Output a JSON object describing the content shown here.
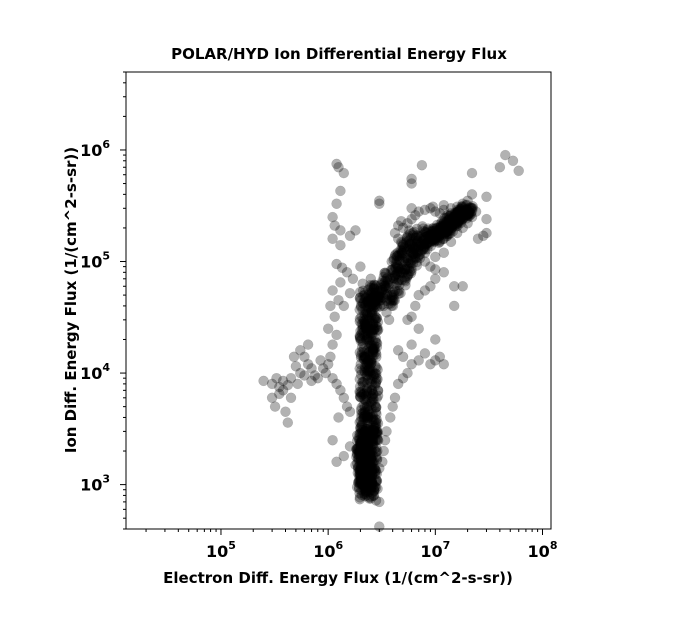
{
  "chart_data": {
    "type": "scatter",
    "title": "POLAR/HYD  Ion Differential Energy Flux",
    "xlabel": "Electron Diff. Energy Flux (1/(cm^2-s-sr))",
    "ylabel": "Ion Diff. Energy Flux (1/(cm^2-s-sr))",
    "xscale": "log",
    "yscale": "log",
    "xlim": [
      13000,
      120000000
    ],
    "ylim": [
      400,
      5000000
    ],
    "grid": false,
    "marker_color": "#000000",
    "marker_alpha": 0.3,
    "x_ticks": [
      {
        "base": "10",
        "exp": "5",
        "value": 100000
      },
      {
        "base": "10",
        "exp": "6",
        "value": 1000000
      },
      {
        "base": "10",
        "exp": "7",
        "value": 10000000
      },
      {
        "base": "10",
        "exp": "8",
        "value": 100000000
      }
    ],
    "y_ticks": [
      {
        "base": "10",
        "exp": "3",
        "value": 1000
      },
      {
        "base": "10",
        "exp": "4",
        "value": 10000
      },
      {
        "base": "10",
        "exp": "5",
        "value": 100000
      },
      {
        "base": "10",
        "exp": "6",
        "value": 1000000
      }
    ],
    "points": [
      [
        1200000,
        750000
      ],
      [
        1250000,
        700000
      ],
      [
        1400000,
        620000
      ],
      [
        1300000,
        430000
      ],
      [
        1200000,
        330000
      ],
      [
        1100000,
        250000
      ],
      [
        1150000,
        210000
      ],
      [
        1300000,
        190000
      ],
      [
        1100000,
        160000
      ],
      [
        1600000,
        170000
      ],
      [
        1300000,
        140000
      ],
      [
        1200000,
        95000
      ],
      [
        1350000,
        88000
      ],
      [
        1500000,
        80000
      ],
      [
        1700000,
        70000
      ],
      [
        1300000,
        65000
      ],
      [
        1100000,
        55000
      ],
      [
        1250000,
        45000
      ],
      [
        1050000,
        40000
      ],
      [
        1150000,
        32000
      ],
      [
        1000000,
        25000
      ],
      [
        1200000,
        22000
      ],
      [
        1100000,
        18000
      ],
      [
        1050000,
        14000
      ],
      [
        1000000,
        12000
      ],
      [
        900000,
        11000
      ],
      [
        800000,
        9000
      ],
      [
        700000,
        8500
      ],
      [
        600000,
        9500
      ],
      [
        650000,
        12000
      ],
      [
        550000,
        10000
      ],
      [
        500000,
        11500
      ],
      [
        480000,
        14000
      ],
      [
        550000,
        16000
      ],
      [
        600000,
        14000
      ],
      [
        650000,
        18000
      ],
      [
        700000,
        11000
      ],
      [
        450000,
        9000
      ],
      [
        420000,
        7800
      ],
      [
        380000,
        7000
      ],
      [
        350000,
        6500
      ],
      [
        300000,
        6000
      ],
      [
        250000,
        8500
      ],
      [
        320000,
        5000
      ],
      [
        400000,
        4500
      ],
      [
        420000,
        3600
      ],
      [
        350000,
        7500
      ],
      [
        300000,
        8000
      ],
      [
        450000,
        6000
      ],
      [
        520000,
        8000
      ],
      [
        380000,
        8500
      ],
      [
        330000,
        9000
      ],
      [
        750000,
        9500
      ],
      [
        850000,
        13000
      ],
      [
        950000,
        10000
      ],
      [
        1100000,
        9000
      ],
      [
        1200000,
        8000
      ],
      [
        1300000,
        7000
      ],
      [
        1400000,
        6000
      ],
      [
        1500000,
        5000
      ],
      [
        1600000,
        4500
      ],
      [
        1250000,
        4000
      ],
      [
        1100000,
        2500
      ],
      [
        1200000,
        1600
      ],
      [
        1400000,
        1800
      ],
      [
        1600000,
        2200
      ],
      [
        1800000,
        1500
      ],
      [
        2000000,
        1200
      ],
      [
        2100000,
        1000
      ],
      [
        2200000,
        900
      ],
      [
        2300000,
        800
      ],
      [
        2500000,
        750
      ],
      [
        2800000,
        720
      ],
      [
        2600000,
        850
      ],
      [
        3000000,
        700
      ],
      [
        3000000,
        420
      ],
      [
        3400000,
        2500
      ],
      [
        3500000,
        3000
      ],
      [
        3800000,
        4000
      ],
      [
        4000000,
        5000
      ],
      [
        4200000,
        6000
      ],
      [
        4500000,
        8000
      ],
      [
        5000000,
        9000
      ],
      [
        5500000,
        10000
      ],
      [
        6000000,
        12000
      ],
      [
        5000000,
        14000
      ],
      [
        4500000,
        16000
      ],
      [
        6000000,
        18000
      ],
      [
        7000000,
        13000
      ],
      [
        8000000,
        15000
      ],
      [
        9000000,
        12000
      ],
      [
        10000000,
        13000
      ],
      [
        11000000,
        14000
      ],
      [
        12000000,
        12000
      ],
      [
        10000000,
        20000
      ],
      [
        7000000,
        25000
      ],
      [
        6000000,
        32000
      ],
      [
        5500000,
        30000
      ],
      [
        6500000,
        40000
      ],
      [
        7000000,
        50000
      ],
      [
        8000000,
        55000
      ],
      [
        9000000,
        60000
      ],
      [
        10000000,
        70000
      ],
      [
        12000000,
        80000
      ],
      [
        15000000,
        60000
      ],
      [
        10000000,
        85000
      ],
      [
        9000000,
        90000
      ],
      [
        8000000,
        100000
      ],
      [
        10000000,
        110000
      ],
      [
        12000000,
        120000
      ],
      [
        14000000,
        150000
      ],
      [
        16000000,
        180000
      ],
      [
        18000000,
        200000
      ],
      [
        20000000,
        220000
      ],
      [
        22000000,
        250000
      ],
      [
        24000000,
        280000
      ],
      [
        22000000,
        300000
      ],
      [
        20000000,
        260000
      ],
      [
        18000000,
        240000
      ],
      [
        16000000,
        230000
      ],
      [
        15000000,
        210000
      ],
      [
        14000000,
        190000
      ],
      [
        13000000,
        170000
      ],
      [
        12000000,
        160000
      ],
      [
        11000000,
        150000
      ],
      [
        5000000,
        200000
      ],
      [
        5500000,
        220000
      ],
      [
        6000000,
        240000
      ],
      [
        6500000,
        260000
      ],
      [
        7000000,
        280000
      ],
      [
        8000000,
        290000
      ],
      [
        9000000,
        300000
      ],
      [
        10000000,
        280000
      ],
      [
        11000000,
        270000
      ],
      [
        12000000,
        290000
      ],
      [
        13000000,
        260000
      ],
      [
        4800000,
        230000
      ],
      [
        4500000,
        210000
      ],
      [
        4200000,
        180000
      ],
      [
        4500000,
        160000
      ],
      [
        4800000,
        150000
      ],
      [
        5000000,
        140000
      ],
      [
        5500000,
        130000
      ],
      [
        6000000,
        120000
      ],
      [
        6500000,
        110000
      ],
      [
        5000000,
        100000
      ],
      [
        4500000,
        90000
      ],
      [
        4000000,
        80000
      ],
      [
        3800000,
        70000
      ],
      [
        3600000,
        65000
      ],
      [
        3400000,
        60000
      ],
      [
        3200000,
        55000
      ],
      [
        3000000,
        50000
      ],
      [
        3100000,
        45000
      ],
      [
        3300000,
        40000
      ],
      [
        3500000,
        35000
      ],
      [
        3700000,
        30000
      ],
      [
        6000000,
        550000
      ],
      [
        6000000,
        500000
      ],
      [
        7500000,
        730000
      ],
      [
        9500000,
        310000
      ],
      [
        12000000,
        320000
      ],
      [
        14000000,
        300000
      ],
      [
        16000000,
        310000
      ],
      [
        18000000,
        330000
      ],
      [
        20000000,
        350000
      ],
      [
        22000000,
        400000
      ],
      [
        30000000,
        380000
      ],
      [
        22000000,
        620000
      ],
      [
        45000000,
        900000
      ],
      [
        40000000,
        700000
      ],
      [
        53000000,
        800000
      ],
      [
        60000000,
        650000
      ],
      [
        30000000,
        240000
      ],
      [
        30000000,
        180000
      ],
      [
        28000000,
        170000
      ],
      [
        25000000,
        160000
      ],
      [
        18000000,
        60000
      ],
      [
        15000000,
        40000
      ],
      [
        6000000,
        300000
      ],
      [
        3000000,
        350000
      ],
      [
        3000000,
        330000
      ],
      [
        1800000,
        190000
      ],
      [
        2000000,
        90000
      ],
      [
        2500000,
        70000
      ],
      [
        2700000,
        62000
      ],
      [
        1600000,
        52000
      ],
      [
        1400000,
        40000
      ],
      [
        2200000,
        40000
      ],
      [
        2000000,
        3200
      ],
      [
        2100000,
        2800
      ],
      [
        2000000,
        2000
      ],
      [
        2500000,
        1700
      ],
      [
        3000000,
        1400
      ],
      [
        2800000,
        1100
      ],
      [
        2300000,
        1300
      ],
      [
        2700000,
        950
      ],
      [
        2400000,
        1050
      ],
      [
        3200000,
        1600
      ],
      [
        3300000,
        2000
      ]
    ],
    "dense_clusters": [
      {
        "x_range": [
          1800000,
          3200000
        ],
        "y_range": [
          800,
          60000
        ],
        "count": 520
      },
      {
        "x_range": [
          3000000,
          8000000
        ],
        "y_range": [
          40000,
          200000
        ],
        "count": 260
      },
      {
        "x_range": [
          6000000,
          20000000
        ],
        "y_range": [
          150000,
          300000
        ],
        "count": 240
      },
      {
        "x_range": [
          1700000,
          2800000
        ],
        "y_range": [
          900,
          3000
        ],
        "count": 180
      }
    ]
  }
}
